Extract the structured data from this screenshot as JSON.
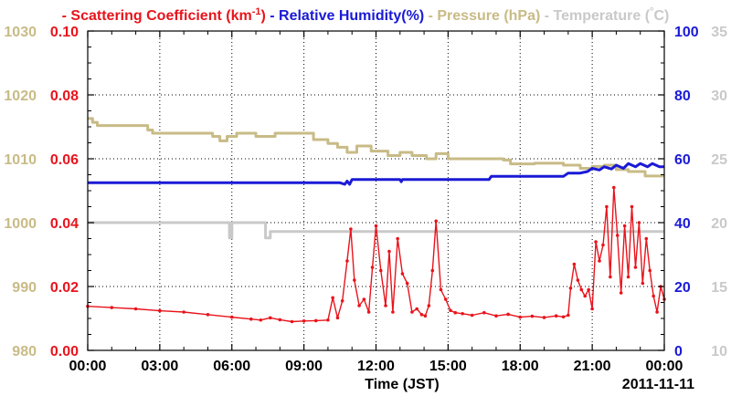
{
  "chart_data": {
    "type": "line",
    "xlabel": "Time (JST)",
    "date_label": "2011-11-11",
    "x_ticks": [
      "00:00",
      "03:00",
      "06:00",
      "09:00",
      "12:00",
      "15:00",
      "18:00",
      "21:00",
      "00:00"
    ],
    "x_range_hours": [
      0,
      24
    ],
    "legend": [
      {
        "dash": "-",
        "text": "Scattering Coefficient (km",
        "sup": "-1",
        "close": ")",
        "color": "#e8141c"
      },
      {
        "dash": "-",
        "text": "Relative Humidity(%)",
        "color": "#1a1ad6"
      },
      {
        "dash": "-",
        "text": "Pressure (hPa)",
        "color": "#c8bb86"
      },
      {
        "dash": "-",
        "text": "Temperature (",
        "deg": "°",
        "close": "C)",
        "color": "#c9c9c9"
      }
    ],
    "axes": {
      "pressure": {
        "side": "left-outer",
        "color": "#c8bb86",
        "ylim": [
          980,
          1030
        ],
        "ticks": [
          "980",
          "990",
          "1000",
          "1010",
          "1020",
          "1030"
        ]
      },
      "scattering": {
        "side": "left-inner",
        "color": "#e8141c",
        "ylim": [
          0,
          0.1
        ],
        "ticks": [
          "0.00",
          "0.02",
          "0.04",
          "0.06",
          "0.08",
          "0.10"
        ]
      },
      "humidity": {
        "side": "right-inner",
        "color": "#1a1ad6",
        "ylim": [
          0,
          100
        ],
        "ticks": [
          "0",
          "20",
          "40",
          "60",
          "80",
          "100"
        ]
      },
      "temperature": {
        "side": "right-outer",
        "color": "#c9c9c9",
        "ylim": [
          10,
          35
        ],
        "ticks": [
          "10",
          "15",
          "20",
          "25",
          "30",
          "35"
        ]
      }
    },
    "grid": true,
    "series": [
      {
        "name": "Pressure (hPa)",
        "axis": "pressure",
        "color": "#c8bb86",
        "step": true,
        "x": [
          0,
          0.2,
          0.4,
          2.3,
          2.5,
          2.7,
          4.2,
          5.2,
          5.5,
          5.8,
          6.2,
          7.0,
          7.8,
          9.4,
          10.0,
          10.4,
          10.8,
          11.2,
          11.8,
          12.5,
          13.0,
          13.5,
          14.1,
          14.5,
          15.0,
          17.3,
          17.6,
          18.0,
          18.6,
          19.8,
          20.5,
          21.0,
          21.5,
          22.0,
          22.5,
          23.2,
          24
        ],
        "y": [
          1016.3,
          1015.7,
          1015.2,
          1015.2,
          1014.5,
          1014.0,
          1014.0,
          1013.5,
          1012.8,
          1013.5,
          1014.0,
          1013.5,
          1014.0,
          1013.0,
          1012.4,
          1011.8,
          1011.0,
          1012.0,
          1011.2,
          1010.5,
          1011.0,
          1010.5,
          1010.0,
          1010.8,
          1010.0,
          1009.8,
          1009.2,
          1009.2,
          1009.3,
          1009.0,
          1008.5,
          1008.8,
          1009.0,
          1008.3,
          1008.0,
          1007.3,
          1007.3
        ]
      },
      {
        "name": "Relative Humidity(%)",
        "axis": "humidity",
        "color": "#1a1ad6",
        "step": false,
        "x": [
          0,
          10.5,
          10.7,
          10.8,
          10.9,
          11.0,
          13.0,
          13.05,
          13.1,
          16.7,
          16.8,
          19.8,
          20.0,
          20.5,
          20.8,
          21.0,
          21.3,
          21.5,
          21.8,
          22.0,
          22.3,
          22.5,
          22.8,
          23.0,
          23.3,
          23.5,
          23.8,
          24
        ],
        "y": [
          52.5,
          52.5,
          52,
          53,
          52,
          53.5,
          53.5,
          52.8,
          53.5,
          53.5,
          54.5,
          54.5,
          55.5,
          55.5,
          56,
          57,
          56.5,
          57.5,
          56.8,
          58,
          57,
          58.5,
          57.5,
          58.5,
          57.5,
          58.5,
          57.5,
          57.5
        ]
      },
      {
        "name": "Temperature (°C)",
        "axis": "temperature",
        "color": "#c9c9c9",
        "step": true,
        "x": [
          0,
          5.8,
          5.9,
          6.0,
          7.2,
          7.4,
          7.6,
          24
        ],
        "y": [
          20,
          20,
          18.8,
          20,
          20,
          18.8,
          19.3,
          19.3
        ]
      },
      {
        "name": "Scattering Coefficient (km-1)",
        "axis": "scattering",
        "color": "#e8141c",
        "step": false,
        "x": [
          0,
          1.0,
          2.0,
          3.0,
          4.0,
          5.0,
          6.0,
          6.8,
          7.2,
          7.6,
          8.0,
          8.5,
          9.0,
          9.5,
          10.0,
          10.2,
          10.4,
          10.6,
          10.8,
          10.95,
          11.1,
          11.3,
          11.5,
          11.7,
          11.85,
          12.0,
          12.2,
          12.4,
          12.55,
          12.7,
          12.9,
          13.1,
          13.3,
          13.5,
          13.7,
          13.9,
          14.05,
          14.2,
          14.35,
          14.5,
          14.7,
          14.9,
          15.1,
          15.3,
          15.6,
          16.0,
          16.5,
          17.0,
          17.5,
          18.0,
          18.5,
          19.0,
          19.5,
          19.8,
          20.0,
          20.1,
          20.25,
          20.4,
          20.55,
          20.7,
          20.85,
          21.0,
          21.15,
          21.3,
          21.45,
          21.6,
          21.75,
          21.9,
          22.05,
          22.2,
          22.35,
          22.5,
          22.65,
          22.8,
          22.95,
          23.1,
          23.25,
          23.4,
          23.55,
          23.7,
          23.85,
          24
        ],
        "y": [
          0.0138,
          0.0134,
          0.013,
          0.0124,
          0.012,
          0.0112,
          0.0104,
          0.0098,
          0.0095,
          0.0102,
          0.0096,
          0.009,
          0.0092,
          0.0093,
          0.0095,
          0.0165,
          0.0102,
          0.0155,
          0.028,
          0.038,
          0.022,
          0.014,
          0.016,
          0.012,
          0.026,
          0.039,
          0.025,
          0.014,
          0.031,
          0.012,
          0.035,
          0.024,
          0.021,
          0.012,
          0.013,
          0.0112,
          0.0108,
          0.014,
          0.025,
          0.0405,
          0.019,
          0.016,
          0.0125,
          0.0118,
          0.0115,
          0.011,
          0.0118,
          0.0108,
          0.0113,
          0.0104,
          0.0107,
          0.0103,
          0.0108,
          0.0105,
          0.011,
          0.0195,
          0.027,
          0.022,
          0.019,
          0.017,
          0.019,
          0.013,
          0.034,
          0.028,
          0.033,
          0.045,
          0.023,
          0.051,
          0.036,
          0.018,
          0.039,
          0.023,
          0.045,
          0.026,
          0.04,
          0.021,
          0.035,
          0.025,
          0.017,
          0.012,
          0.02,
          0.016
        ]
      }
    ]
  }
}
